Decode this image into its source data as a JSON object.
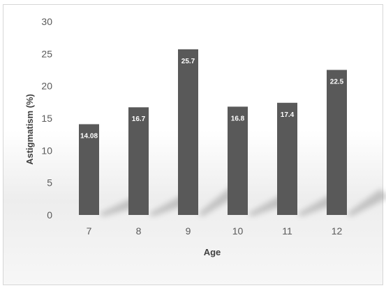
{
  "chart_data": {
    "type": "bar",
    "categories": [
      "7",
      "8",
      "9",
      "10",
      "11",
      "12"
    ],
    "values": [
      14.08,
      16.7,
      25.7,
      16.8,
      17.4,
      22.5
    ],
    "data_labels": [
      "14.08",
      "16.7",
      "25.7",
      "16.8",
      "17.4",
      "22.5"
    ],
    "xlabel": "Age",
    "ylabel": "Astigmatism (%)",
    "ylim": [
      0,
      30
    ],
    "yticks": [
      0,
      5,
      10,
      15,
      20,
      25,
      30
    ],
    "ytick_labels": [
      "0",
      "5",
      "10",
      "15",
      "20",
      "25",
      "30"
    ],
    "grid": false,
    "legend": "none",
    "bar_color": "#595959",
    "label_color": "#ffffff"
  }
}
